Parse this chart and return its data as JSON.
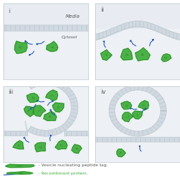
{
  "bg_color": "#f2f3f5",
  "panel_bg_top": "#edf0f4",
  "panel_bg_cytosol": "#eef1f4",
  "membrane_fill": "#d0d8e0",
  "membrane_edge": "#b8c4cc",
  "protein_green": "#3aaa35",
  "protein_dark": "#2a8a25",
  "protein_outline": "#228820",
  "tag_blue": "#2255bb",
  "text_color": "#555555",
  "media_color": "#e8ecf2",
  "cytosol_color": "#edf0f4",
  "title_i": "i",
  "title_ii": "ii",
  "title_iii": "iii",
  "title_iv": "iv",
  "label_media": "Media",
  "label_cytosol": "Cytosol",
  "legend_tag": "- Vesicle nucleating peptide tag.",
  "legend_protein": "- Recombinant protein.",
  "fig_width": 2.63,
  "fig_height": 2.63,
  "dpi": 100
}
